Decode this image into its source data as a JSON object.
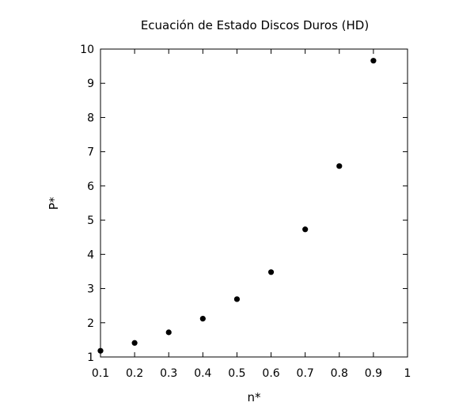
{
  "chart_data": {
    "type": "scatter",
    "title": "Ecuación de Estado Discos Duros (HD)",
    "xlabel": "n*",
    "ylabel": "P*",
    "xlim": [
      0.1,
      1
    ],
    "ylim": [
      1,
      10
    ],
    "x_ticks": [
      0.1,
      0.2,
      0.3,
      0.4,
      0.5,
      0.6,
      0.7,
      0.8,
      0.9,
      1
    ],
    "y_ticks": [
      1,
      2,
      3,
      4,
      5,
      6,
      7,
      8,
      9,
      10
    ],
    "x_tick_labels": [
      "0.1",
      "0.2",
      "0.3",
      "0.4",
      "0.5",
      "0.6",
      "0.7",
      "0.8",
      "0.9",
      "1"
    ],
    "y_tick_labels": [
      "1",
      "2",
      "3",
      "4",
      "5",
      "6",
      "7",
      "8",
      "9",
      "10"
    ],
    "grid": false,
    "marker_color": "#000000",
    "series": [
      {
        "x": [
          0.1,
          0.2,
          0.3,
          0.4,
          0.5,
          0.6,
          0.7,
          0.8,
          0.9
        ],
        "y": [
          1.18,
          1.41,
          1.72,
          2.12,
          2.69,
          3.48,
          4.73,
          6.58,
          9.66
        ]
      }
    ]
  }
}
